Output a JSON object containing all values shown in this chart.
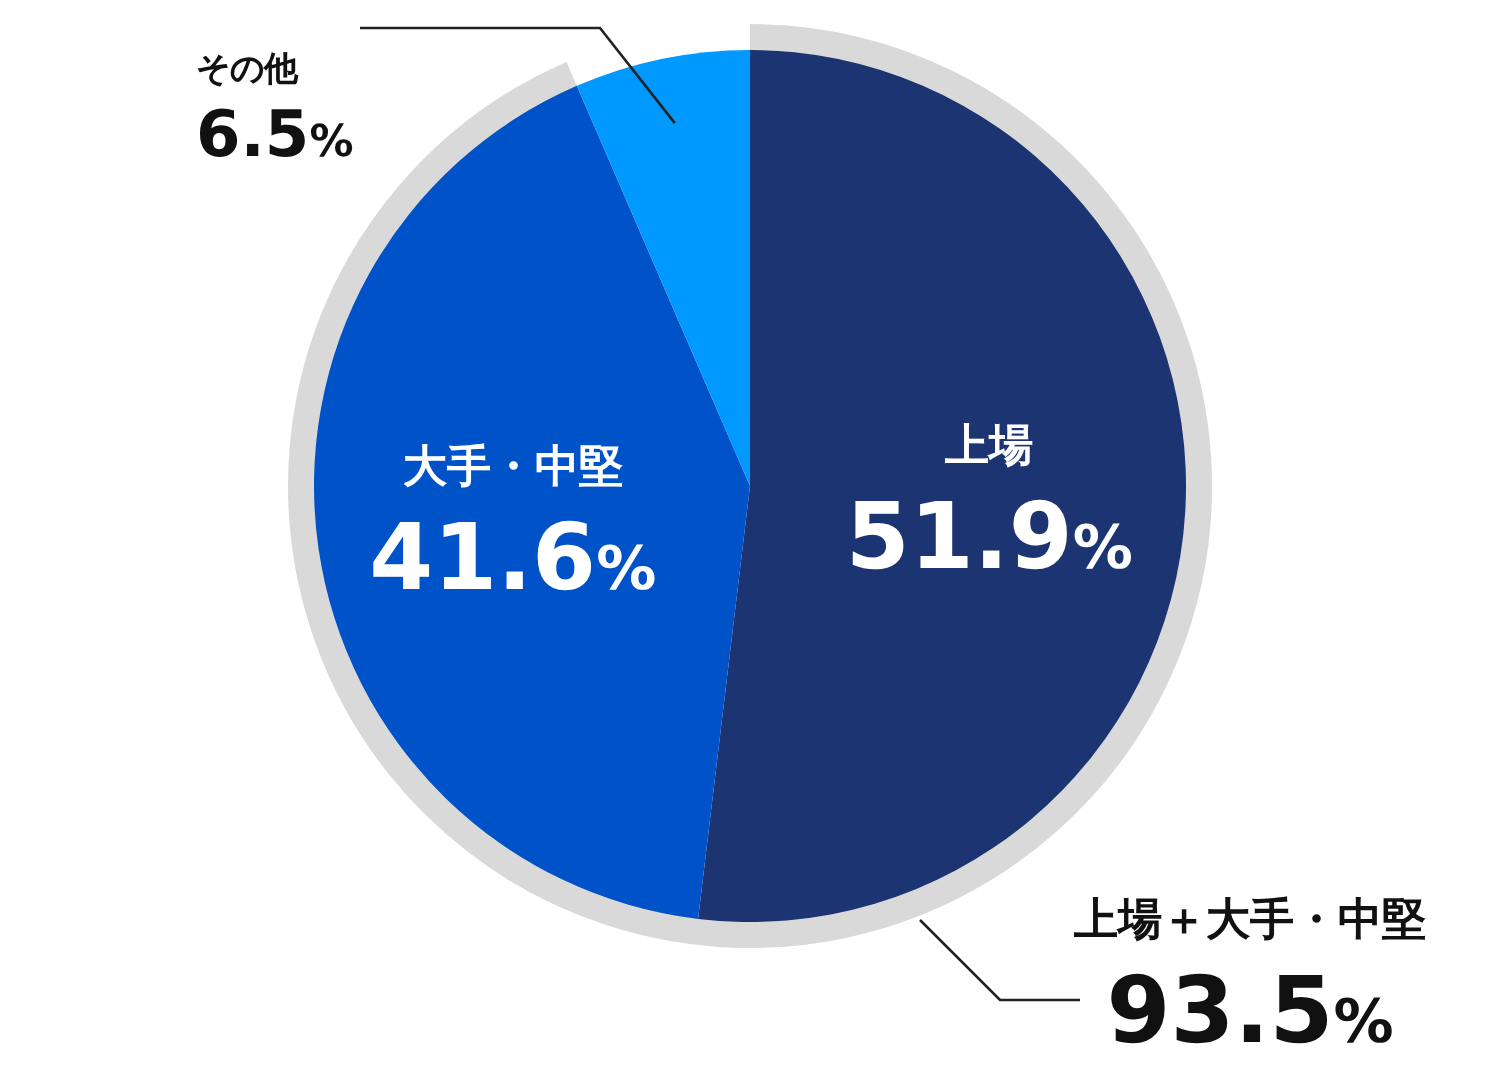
{
  "chart_data": {
    "type": "pie",
    "categories": [
      "上場",
      "大手・中堅",
      "その他"
    ],
    "values": [
      51.9,
      41.6,
      6.5
    ],
    "value_labels": [
      "51.9%",
      "41.6%",
      "6.5%"
    ],
    "colors": [
      "#1c3471",
      "#0052c9",
      "#0099ff"
    ],
    "annotations": [
      "上場＋大手・中堅",
      "93.5%"
    ]
  }
}
